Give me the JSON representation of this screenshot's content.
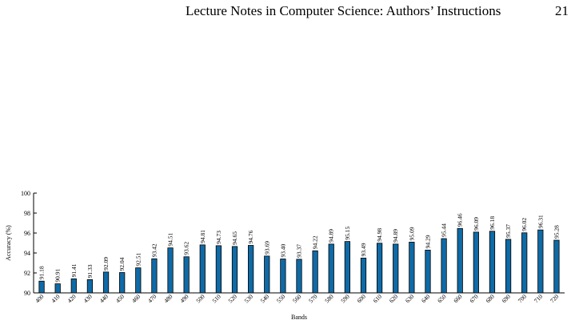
{
  "page": {
    "running_head": "Lecture Notes in Computer Science: Authors’ Instructions",
    "page_number": "21"
  },
  "chart_data": {
    "type": "bar",
    "xlabel": "Bands",
    "ylabel": "Accuracy (%)",
    "ylim": [
      90,
      100
    ],
    "yticks": [
      "90",
      "92",
      "94",
      "96",
      "98",
      "100"
    ],
    "categories": [
      "400",
      "410",
      "420",
      "430",
      "440",
      "450",
      "460",
      "470",
      "480",
      "490",
      "500",
      "510",
      "520",
      "530",
      "540",
      "550",
      "560",
      "570",
      "580",
      "590",
      "600",
      "610",
      "620",
      "630",
      "640",
      "650",
      "660",
      "670",
      "680",
      "690",
      "700",
      "710",
      "720"
    ],
    "values": [
      91.18,
      90.91,
      91.41,
      91.33,
      92.09,
      92.04,
      92.51,
      93.42,
      94.51,
      93.62,
      94.81,
      94.73,
      94.65,
      94.76,
      93.69,
      93.4,
      93.37,
      94.22,
      94.89,
      95.15,
      93.49,
      94.98,
      94.89,
      95.09,
      94.29,
      95.44,
      96.46,
      96.09,
      96.18,
      95.37,
      96.02,
      96.31,
      95.28
    ],
    "value_labels": [
      "91.18",
      "90.91",
      "91.41",
      "91.33",
      "92.09",
      "92.04",
      "92.51",
      "93.42",
      "94.51",
      "93.62",
      "94.81",
      "94.73",
      "94.65",
      "94.76",
      "93.69",
      "93.40",
      "93.37",
      "94.22",
      "94.89",
      "95.15",
      "93.49",
      "94.98",
      "94.89",
      "95.09",
      "94.29",
      "95.44",
      "96.46",
      "96.09",
      "96.18",
      "95.37",
      "96.02",
      "96.31",
      "95.28"
    ],
    "bar_color": "#0f6aa6",
    "grid": false,
    "legend": "none"
  }
}
